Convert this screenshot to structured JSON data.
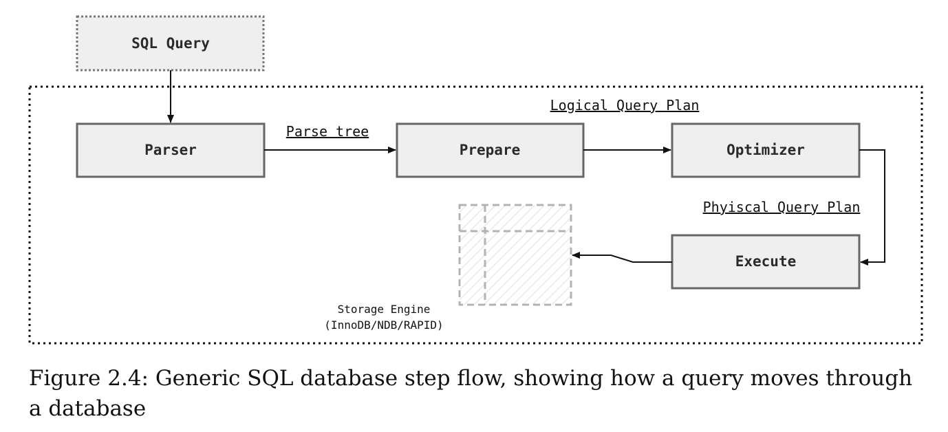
{
  "diagram": {
    "sql_query": "SQL Query",
    "parser": "Parser",
    "prepare": "Prepare",
    "optimizer": "Optimizer",
    "execute": "Execute",
    "parse_tree_label": "Parse tree",
    "logical_plan_label": "Logical Query Plan",
    "physical_plan_label": "Phyiscal Query Plan",
    "storage_engine_line1": "Storage Engine",
    "storage_engine_line2": "(InnoDB/NDB/RAPID)"
  },
  "caption": "Figure 2.4: Generic SQL database step flow, showing how a query moves through a database",
  "colors": {
    "box_fill": "#efefef",
    "box_border": "#666666",
    "storage_dash": "#b3b3b3",
    "hatch": "#d5d5d5"
  }
}
